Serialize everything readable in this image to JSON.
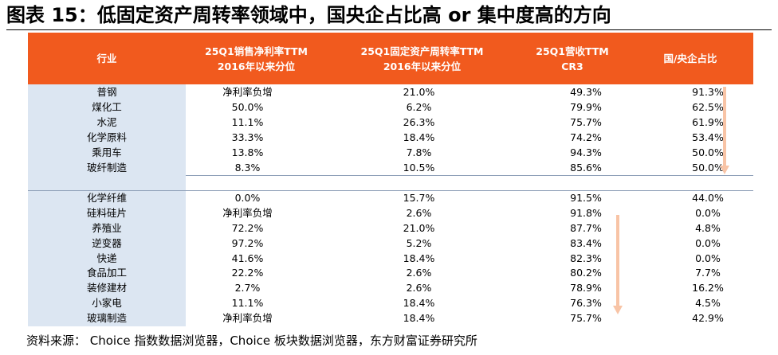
{
  "title": "图表 15：低固定资产周转率领域中，国央企占比高 or 集中度高的方向",
  "headers": [
    {
      "line1": "行业",
      "line2": ""
    },
    {
      "line1": "25Q1销售净利率TTM",
      "line2": "2016年以来分位"
    },
    {
      "line1": "25Q1固定资产周转率TTM",
      "line2": "2016年以来分位"
    },
    {
      "line1": "25Q1营收TTM",
      "line2": "CR3"
    },
    {
      "line1": "国/央企占比",
      "line2": ""
    }
  ],
  "group1": [
    {
      "industry": "普钢",
      "margin": "净利率负增",
      "turnover": "21.0%",
      "cr3": "49.3%",
      "soe": "91.3%"
    },
    {
      "industry": "煤化工",
      "margin": "50.0%",
      "turnover": "6.2%",
      "cr3": "79.9%",
      "soe": "62.5%"
    },
    {
      "industry": "水泥",
      "margin": "11.1%",
      "turnover": "26.3%",
      "cr3": "75.7%",
      "soe": "61.9%"
    },
    {
      "industry": "化学原料",
      "margin": "33.3%",
      "turnover": "18.4%",
      "cr3": "74.2%",
      "soe": "53.4%"
    },
    {
      "industry": "乘用车",
      "margin": "13.8%",
      "turnover": "7.8%",
      "cr3": "94.3%",
      "soe": "50.0%"
    },
    {
      "industry": "玻纤制造",
      "margin": "8.3%",
      "turnover": "10.5%",
      "cr3": "85.6%",
      "soe": "50.0%"
    }
  ],
  "group2": [
    {
      "industry": "化学纤维",
      "margin": "0.0%",
      "turnover": "15.7%",
      "cr3": "91.5%",
      "soe": "44.0%"
    },
    {
      "industry": "硅料硅片",
      "margin": "净利率负增",
      "turnover": "2.6%",
      "cr3": "91.8%",
      "soe": "0.0%"
    },
    {
      "industry": "养殖业",
      "margin": "72.2%",
      "turnover": "21.0%",
      "cr3": "87.7%",
      "soe": "4.8%"
    },
    {
      "industry": "逆变器",
      "margin": "97.2%",
      "turnover": "5.2%",
      "cr3": "83.4%",
      "soe": "0.0%"
    },
    {
      "industry": "快递",
      "margin": "41.6%",
      "turnover": "18.4%",
      "cr3": "82.3%",
      "soe": "0.0%"
    },
    {
      "industry": "食品加工",
      "margin": "22.2%",
      "turnover": "2.6%",
      "cr3": "80.2%",
      "soe": "7.7%"
    },
    {
      "industry": "装修建材",
      "margin": "2.7%",
      "turnover": "2.6%",
      "cr3": "78.9%",
      "soe": "16.2%"
    },
    {
      "industry": "小家电",
      "margin": "11.1%",
      "turnover": "18.4%",
      "cr3": "76.3%",
      "soe": "4.5%"
    },
    {
      "industry": "玻璃制造",
      "margin": "净利率负增",
      "turnover": "18.4%",
      "cr3": "75.7%",
      "soe": "42.9%"
    }
  ],
  "source": "资料来源：  Choice 指数数据浏览器，Choice 板块数据浏览器，东方财富证券研究所",
  "colors": {
    "header_bg": "#F15A1E",
    "industry_bg": "#DCE6F2",
    "arrow": "#F8C4A6"
  }
}
